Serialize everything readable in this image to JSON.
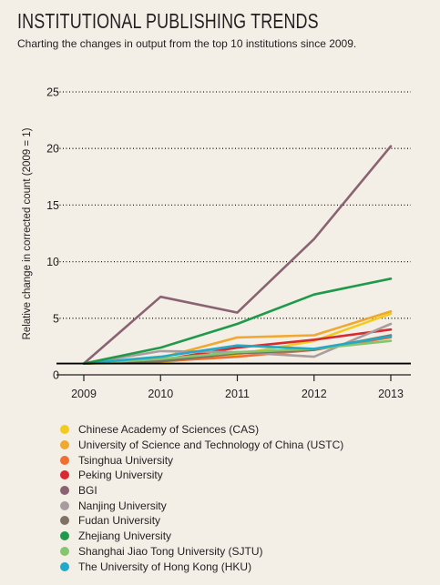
{
  "title": "INSTITUTIONAL PUBLISHING TRENDS",
  "subtitle": "Charting the changes in output from the top 10 institutions since 2009.",
  "chart_data": {
    "type": "line",
    "title": "INSTITUTIONAL PUBLISHING TRENDS",
    "subtitle": "Charting the changes in output from the top 10 institutions since 2009.",
    "xlabel": "",
    "ylabel": "Relative change in corrected count (2009 = 1)",
    "x": [
      "2009",
      "2010",
      "2011",
      "2012",
      "2013"
    ],
    "ylim": [
      0,
      25
    ],
    "yticks": [
      0,
      5,
      10,
      15,
      20,
      25
    ],
    "grid": "horizontal dotted",
    "legend_position": "bottom",
    "series": [
      {
        "name": "Chinese Academy of Sciences (CAS)",
        "color": "#f2cb1d",
        "values": [
          1,
          1.1,
          1.8,
          3.0,
          5.4
        ]
      },
      {
        "name": "University of Science and Technology of China (USTC)",
        "color": "#f0a830",
        "values": [
          1,
          1.5,
          3.3,
          3.5,
          5.6
        ]
      },
      {
        "name": "Tsinghua University",
        "color": "#ee7131",
        "values": [
          1,
          1.2,
          1.6,
          2.2,
          3.3
        ]
      },
      {
        "name": "Peking University",
        "color": "#d82a2f",
        "values": [
          1,
          1.3,
          2.4,
          3.1,
          4.0
        ]
      },
      {
        "name": "BGI",
        "color": "#8a6372",
        "values": [
          1,
          6.9,
          5.5,
          12.0,
          20.2
        ]
      },
      {
        "name": "Nanjing University",
        "color": "#a89c9f",
        "values": [
          1,
          2.1,
          2.0,
          1.6,
          4.5
        ]
      },
      {
        "name": "Fudan University",
        "color": "#7e7360",
        "values": [
          1,
          1.2,
          1.9,
          2.2,
          3.5
        ]
      },
      {
        "name": "Zhejiang University",
        "color": "#1f9a4a",
        "values": [
          1,
          2.4,
          4.5,
          7.1,
          8.5
        ]
      },
      {
        "name": "Shanghai Jiao Tong University (SJTU)",
        "color": "#86c56f",
        "values": [
          1,
          1.4,
          2.0,
          2.3,
          3.0
        ]
      },
      {
        "name": "The University of Hong Kong (HKU)",
        "color": "#22a9c7",
        "values": [
          1,
          1.6,
          2.6,
          2.3,
          3.4
        ]
      }
    ]
  }
}
